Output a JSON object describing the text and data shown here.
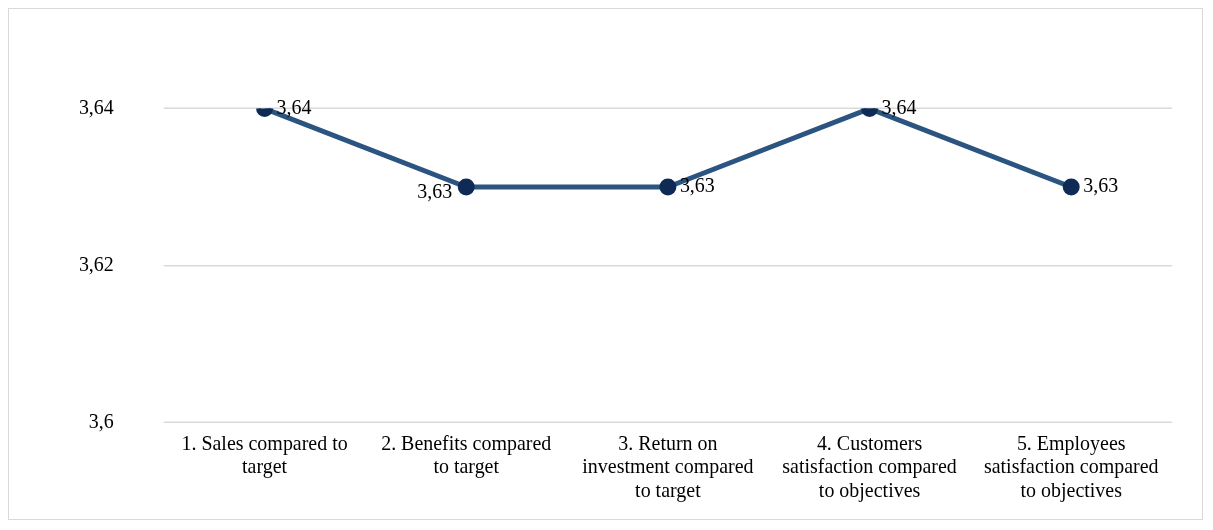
{
  "chart_data": {
    "type": "line",
    "categories": [
      "1. Sales compared to target",
      "2. Benefits compared to target",
      "3. Return on investment compared to target",
      "4. Customers satisfaction compared to objectives",
      "5. Employees satisfaction compared to objectives"
    ],
    "values": [
      3.64,
      3.63,
      3.63,
      3.64,
      3.63
    ],
    "value_labels": [
      "3,64",
      "3,63",
      "3,63",
      "3,64",
      "3,63"
    ],
    "color": "#2b5580",
    "marker": "circle",
    "ylim": [
      3.6,
      3.64
    ],
    "yticks": [
      {
        "value": 3.6,
        "label": "3,6"
      },
      {
        "value": 3.62,
        "label": "3,62"
      },
      {
        "value": 3.64,
        "label": "3,64"
      }
    ],
    "grid": "y",
    "legend": false
  }
}
